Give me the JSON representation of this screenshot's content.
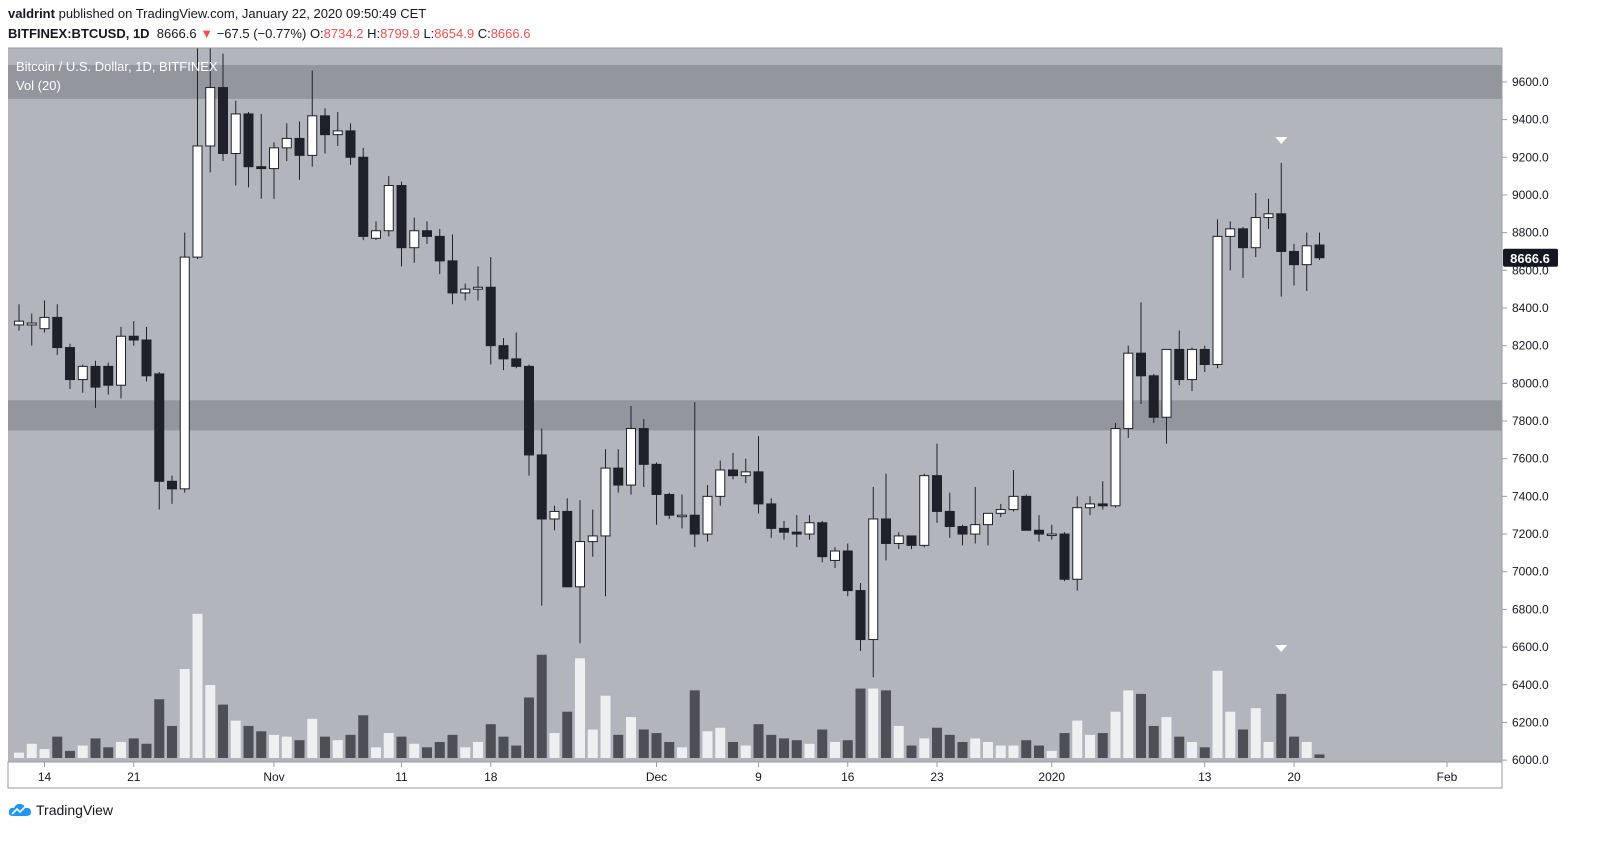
{
  "header": {
    "author": "valdrint",
    "published_text": "published on TradingView.com, January 22, 2020 09:50:49 CET",
    "symbol": "BITFINEX:BTCUSD, 1D",
    "last": "8666.6",
    "change_arrow": "▼",
    "change": "−67.5 (−0.77%)",
    "o_label": "O:",
    "o_value": "8734.2",
    "h_label": "H:",
    "h_value": "8799.9",
    "l_label": "L:",
    "l_value": "8654.9",
    "c_label": "C:",
    "c_value": "8666.6"
  },
  "legend": {
    "title": "Bitcoin / U.S. Dollar, 1D, BITFINEX",
    "vol": "Vol (20)"
  },
  "footer": {
    "brand": "TradingView"
  },
  "colors": {
    "plot_bg": "#b3b5bd",
    "zone": "#94969d",
    "down_candle": "#1e2129",
    "up_candle": "#ffffff",
    "down_volume": "#4d4f55",
    "up_volume": "#eeeff1",
    "price_label_bg": "#131722",
    "neg": "#ef5350"
  },
  "chart_data": {
    "type": "candlestick",
    "title": "Bitcoin / U.S. Dollar, 1D, BITFINEX",
    "ylim": [
      5990,
      9780
    ],
    "y_ticks": [
      "9600.0",
      "9400.0",
      "9200.0",
      "9000.0",
      "8800.0",
      "8600.0",
      "8400.0",
      "8200.0",
      "8000.0",
      "7800.0",
      "7600.0",
      "7400.0",
      "7200.0",
      "7000.0",
      "6800.0",
      "6600.0",
      "6400.0",
      "6200.0",
      "6000.0"
    ],
    "x_ticks": [
      {
        "label": "14",
        "date": "2019-10-14"
      },
      {
        "label": "21",
        "date": "2019-10-21"
      },
      {
        "label": "Nov",
        "date": "2019-11-01"
      },
      {
        "label": "11",
        "date": "2019-11-11"
      },
      {
        "label": "18",
        "date": "2019-11-18"
      },
      {
        "label": "Dec",
        "date": "2019-12-01"
      },
      {
        "label": "9",
        "date": "2019-12-09"
      },
      {
        "label": "16",
        "date": "2019-12-16"
      },
      {
        "label": "23",
        "date": "2019-12-23"
      },
      {
        "label": "2020",
        "date": "2020-01-01"
      },
      {
        "label": "13",
        "date": "2020-01-13"
      },
      {
        "label": "20",
        "date": "2020-01-20"
      },
      {
        "label": "Feb",
        "date": "2020-02-01"
      }
    ],
    "current_price_label": "8666.6",
    "resistance_zone": [
      9510,
      9690
    ],
    "support_zone": [
      7750,
      7910
    ],
    "markers": [
      {
        "date": "2020-01-19",
        "pane": "price",
        "shape": "triangle-down"
      },
      {
        "date": "2020-01-19",
        "pane": "volume",
        "shape": "triangle-down"
      }
    ],
    "candles": [
      {
        "date": "2019-10-12",
        "o": 8310,
        "h": 8420,
        "l": 8280,
        "c": 8330,
        "v": 0.03
      },
      {
        "date": "2019-10-13",
        "o": 8310,
        "h": 8370,
        "l": 8200,
        "c": 8320,
        "v": 0.08
      },
      {
        "date": "2019-10-14",
        "o": 8290,
        "h": 8440,
        "l": 8270,
        "c": 8350,
        "v": 0.05
      },
      {
        "date": "2019-10-15",
        "o": 8350,
        "h": 8420,
        "l": 8150,
        "c": 8190,
        "v": 0.12
      },
      {
        "date": "2019-10-16",
        "o": 8190,
        "h": 8210,
        "l": 7970,
        "c": 8020,
        "v": 0.04
      },
      {
        "date": "2019-10-17",
        "o": 8020,
        "h": 8100,
        "l": 7950,
        "c": 8090,
        "v": 0.07
      },
      {
        "date": "2019-10-18",
        "o": 8090,
        "h": 8120,
        "l": 7870,
        "c": 7980,
        "v": 0.11
      },
      {
        "date": "2019-10-19",
        "o": 8090,
        "h": 8110,
        "l": 7940,
        "c": 7990,
        "v": 0.06
      },
      {
        "date": "2019-10-20",
        "o": 7990,
        "h": 8300,
        "l": 7920,
        "c": 8250,
        "v": 0.09
      },
      {
        "date": "2019-10-21",
        "o": 8250,
        "h": 8330,
        "l": 8200,
        "c": 8230,
        "v": 0.11
      },
      {
        "date": "2019-10-22",
        "o": 8230,
        "h": 8300,
        "l": 8010,
        "c": 8040,
        "v": 0.08
      },
      {
        "date": "2019-10-23",
        "o": 8050,
        "h": 8060,
        "l": 7330,
        "c": 7480,
        "v": 0.33
      },
      {
        "date": "2019-10-24",
        "o": 7480,
        "h": 7510,
        "l": 7360,
        "c": 7440,
        "v": 0.18
      },
      {
        "date": "2019-10-25",
        "o": 7440,
        "h": 8800,
        "l": 7420,
        "c": 8670,
        "v": 0.5
      },
      {
        "date": "2019-10-26",
        "o": 8670,
        "h": 9900,
        "l": 8660,
        "c": 9260,
        "v": 0.81
      },
      {
        "date": "2019-10-27",
        "o": 9260,
        "h": 9900,
        "l": 9120,
        "c": 9570,
        "v": 0.41
      },
      {
        "date": "2019-10-28",
        "o": 9570,
        "h": 9750,
        "l": 9180,
        "c": 9220,
        "v": 0.3
      },
      {
        "date": "2019-10-29",
        "o": 9220,
        "h": 9500,
        "l": 9050,
        "c": 9430,
        "v": 0.21
      },
      {
        "date": "2019-10-30",
        "o": 9430,
        "h": 9440,
        "l": 9040,
        "c": 9150,
        "v": 0.18
      },
      {
        "date": "2019-10-31",
        "o": 9150,
        "h": 9430,
        "l": 8980,
        "c": 9140,
        "v": 0.15
      },
      {
        "date": "2019-11-01",
        "o": 9140,
        "h": 9280,
        "l": 8980,
        "c": 9250,
        "v": 0.13
      },
      {
        "date": "2019-11-02",
        "o": 9250,
        "h": 9380,
        "l": 9180,
        "c": 9300,
        "v": 0.12
      },
      {
        "date": "2019-11-03",
        "o": 9300,
        "h": 9390,
        "l": 9080,
        "c": 9210,
        "v": 0.1
      },
      {
        "date": "2019-11-04",
        "o": 9210,
        "h": 9660,
        "l": 9150,
        "c": 9420,
        "v": 0.22
      },
      {
        "date": "2019-11-05",
        "o": 9420,
        "h": 9460,
        "l": 9220,
        "c": 9320,
        "v": 0.12
      },
      {
        "date": "2019-11-06",
        "o": 9320,
        "h": 9440,
        "l": 9260,
        "c": 9340,
        "v": 0.1
      },
      {
        "date": "2019-11-07",
        "o": 9340,
        "h": 9380,
        "l": 9160,
        "c": 9200,
        "v": 0.13
      },
      {
        "date": "2019-11-08",
        "o": 9200,
        "h": 9250,
        "l": 8760,
        "c": 8780,
        "v": 0.24
      },
      {
        "date": "2019-11-09",
        "o": 8770,
        "h": 8860,
        "l": 8760,
        "c": 8810,
        "v": 0.06
      },
      {
        "date": "2019-11-10",
        "o": 8810,
        "h": 9100,
        "l": 8780,
        "c": 9050,
        "v": 0.14
      },
      {
        "date": "2019-11-11",
        "o": 9050,
        "h": 9070,
        "l": 8620,
        "c": 8720,
        "v": 0.12
      },
      {
        "date": "2019-11-12",
        "o": 8720,
        "h": 8880,
        "l": 8640,
        "c": 8810,
        "v": 0.08
      },
      {
        "date": "2019-11-13",
        "o": 8810,
        "h": 8860,
        "l": 8740,
        "c": 8780,
        "v": 0.06
      },
      {
        "date": "2019-11-14",
        "o": 8780,
        "h": 8820,
        "l": 8580,
        "c": 8650,
        "v": 0.09
      },
      {
        "date": "2019-11-15",
        "o": 8650,
        "h": 8790,
        "l": 8420,
        "c": 8480,
        "v": 0.13
      },
      {
        "date": "2019-11-16",
        "o": 8480,
        "h": 8530,
        "l": 8440,
        "c": 8500,
        "v": 0.06
      },
      {
        "date": "2019-11-17",
        "o": 8500,
        "h": 8620,
        "l": 8440,
        "c": 8510,
        "v": 0.09
      },
      {
        "date": "2019-11-18",
        "o": 8510,
        "h": 8670,
        "l": 8100,
        "c": 8200,
        "v": 0.19
      },
      {
        "date": "2019-11-19",
        "o": 8200,
        "h": 8240,
        "l": 8070,
        "c": 8130,
        "v": 0.12
      },
      {
        "date": "2019-11-20",
        "o": 8130,
        "h": 8270,
        "l": 8080,
        "c": 8090,
        "v": 0.07
      },
      {
        "date": "2019-11-21",
        "o": 8090,
        "h": 8100,
        "l": 7510,
        "c": 7620,
        "v": 0.34
      },
      {
        "date": "2019-11-22",
        "o": 7620,
        "h": 7760,
        "l": 6820,
        "c": 7280,
        "v": 0.58
      },
      {
        "date": "2019-11-23",
        "o": 7280,
        "h": 7350,
        "l": 7220,
        "c": 7320,
        "v": 0.14
      },
      {
        "date": "2019-11-24",
        "o": 7320,
        "h": 7390,
        "l": 6950,
        "c": 6920,
        "v": 0.26
      },
      {
        "date": "2019-11-25",
        "o": 6920,
        "h": 7380,
        "l": 6620,
        "c": 7160,
        "v": 0.56
      },
      {
        "date": "2019-11-26",
        "o": 7160,
        "h": 7330,
        "l": 7080,
        "c": 7190,
        "v": 0.16
      },
      {
        "date": "2019-11-27",
        "o": 7190,
        "h": 7650,
        "l": 6870,
        "c": 7550,
        "v": 0.35
      },
      {
        "date": "2019-11-28",
        "o": 7550,
        "h": 7650,
        "l": 7420,
        "c": 7460,
        "v": 0.13
      },
      {
        "date": "2019-11-29",
        "o": 7460,
        "h": 7880,
        "l": 7410,
        "c": 7760,
        "v": 0.23
      },
      {
        "date": "2019-11-30",
        "o": 7760,
        "h": 7810,
        "l": 7450,
        "c": 7570,
        "v": 0.16
      },
      {
        "date": "2019-12-01",
        "o": 7570,
        "h": 7580,
        "l": 7250,
        "c": 7410,
        "v": 0.14
      },
      {
        "date": "2019-12-02",
        "o": 7410,
        "h": 7420,
        "l": 7280,
        "c": 7300,
        "v": 0.09
      },
      {
        "date": "2019-12-03",
        "o": 7300,
        "h": 7410,
        "l": 7230,
        "c": 7300,
        "v": 0.06
      },
      {
        "date": "2019-12-04",
        "o": 7300,
        "h": 7900,
        "l": 7130,
        "c": 7200,
        "v": 0.38
      },
      {
        "date": "2019-12-05",
        "o": 7200,
        "h": 7460,
        "l": 7160,
        "c": 7400,
        "v": 0.15
      },
      {
        "date": "2019-12-06",
        "o": 7400,
        "h": 7590,
        "l": 7350,
        "c": 7540,
        "v": 0.17
      },
      {
        "date": "2019-12-07",
        "o": 7540,
        "h": 7630,
        "l": 7490,
        "c": 7510,
        "v": 0.09
      },
      {
        "date": "2019-12-08",
        "o": 7510,
        "h": 7600,
        "l": 7470,
        "c": 7530,
        "v": 0.07
      },
      {
        "date": "2019-12-09",
        "o": 7530,
        "h": 7720,
        "l": 7310,
        "c": 7360,
        "v": 0.19
      },
      {
        "date": "2019-12-10",
        "o": 7360,
        "h": 7390,
        "l": 7180,
        "c": 7230,
        "v": 0.13
      },
      {
        "date": "2019-12-11",
        "o": 7230,
        "h": 7270,
        "l": 7170,
        "c": 7210,
        "v": 0.11
      },
      {
        "date": "2019-12-12",
        "o": 7210,
        "h": 7300,
        "l": 7130,
        "c": 7200,
        "v": 0.1
      },
      {
        "date": "2019-12-13",
        "o": 7200,
        "h": 7300,
        "l": 7170,
        "c": 7260,
        "v": 0.08
      },
      {
        "date": "2019-12-14",
        "o": 7260,
        "h": 7270,
        "l": 7050,
        "c": 7080,
        "v": 0.16
      },
      {
        "date": "2019-12-15",
        "o": 7060,
        "h": 7130,
        "l": 7020,
        "c": 7110,
        "v": 0.09
      },
      {
        "date": "2019-12-16",
        "o": 7110,
        "h": 7150,
        "l": 6870,
        "c": 6900,
        "v": 0.1
      },
      {
        "date": "2019-12-17",
        "o": 6900,
        "h": 6940,
        "l": 6580,
        "c": 6640,
        "v": 0.39
      },
      {
        "date": "2019-12-18",
        "o": 6640,
        "h": 7450,
        "l": 6440,
        "c": 7280,
        "v": 0.39
      },
      {
        "date": "2019-12-19",
        "o": 7280,
        "h": 7520,
        "l": 7060,
        "c": 7150,
        "v": 0.38
      },
      {
        "date": "2019-12-20",
        "o": 7150,
        "h": 7210,
        "l": 7120,
        "c": 7190,
        "v": 0.18
      },
      {
        "date": "2019-12-21",
        "o": 7190,
        "h": 7190,
        "l": 7120,
        "c": 7140,
        "v": 0.07
      },
      {
        "date": "2019-12-22",
        "o": 7140,
        "h": 7520,
        "l": 7130,
        "c": 7510,
        "v": 0.11
      },
      {
        "date": "2019-12-23",
        "o": 7510,
        "h": 7680,
        "l": 7260,
        "c": 7320,
        "v": 0.17
      },
      {
        "date": "2019-12-24",
        "o": 7320,
        "h": 7420,
        "l": 7180,
        "c": 7240,
        "v": 0.13
      },
      {
        "date": "2019-12-25",
        "o": 7240,
        "h": 7250,
        "l": 7140,
        "c": 7200,
        "v": 0.09
      },
      {
        "date": "2019-12-26",
        "o": 7200,
        "h": 7450,
        "l": 7150,
        "c": 7250,
        "v": 0.11
      },
      {
        "date": "2019-12-27",
        "o": 7250,
        "h": 7300,
        "l": 7140,
        "c": 7310,
        "v": 0.09
      },
      {
        "date": "2019-12-28",
        "o": 7310,
        "h": 7360,
        "l": 7290,
        "c": 7330,
        "v": 0.07
      },
      {
        "date": "2019-12-29",
        "o": 7330,
        "h": 7540,
        "l": 7320,
        "c": 7400,
        "v": 0.07
      },
      {
        "date": "2019-12-30",
        "o": 7400,
        "h": 7410,
        "l": 7230,
        "c": 7220,
        "v": 0.1
      },
      {
        "date": "2019-12-31",
        "o": 7220,
        "h": 7300,
        "l": 7160,
        "c": 7200,
        "v": 0.07
      },
      {
        "date": "2020-01-01",
        "o": 7200,
        "h": 7250,
        "l": 7170,
        "c": 7200,
        "v": 0.04
      },
      {
        "date": "2020-01-02",
        "o": 7200,
        "h": 7210,
        "l": 6950,
        "c": 6960,
        "v": 0.14
      },
      {
        "date": "2020-01-03",
        "o": 6960,
        "h": 7400,
        "l": 6900,
        "c": 7340,
        "v": 0.21
      },
      {
        "date": "2020-01-04",
        "o": 7340,
        "h": 7400,
        "l": 7300,
        "c": 7360,
        "v": 0.13
      },
      {
        "date": "2020-01-05",
        "o": 7360,
        "h": 7480,
        "l": 7330,
        "c": 7350,
        "v": 0.14
      },
      {
        "date": "2020-01-06",
        "o": 7350,
        "h": 7790,
        "l": 7340,
        "c": 7760,
        "v": 0.26
      },
      {
        "date": "2020-01-07",
        "o": 7760,
        "h": 8200,
        "l": 7710,
        "c": 8160,
        "v": 0.38
      },
      {
        "date": "2020-01-08",
        "o": 8160,
        "h": 8430,
        "l": 7890,
        "c": 8040,
        "v": 0.36
      },
      {
        "date": "2020-01-09",
        "o": 8040,
        "h": 8050,
        "l": 7790,
        "c": 7820,
        "v": 0.18
      },
      {
        "date": "2020-01-10",
        "o": 7820,
        "h": 8180,
        "l": 7680,
        "c": 8180,
        "v": 0.23
      },
      {
        "date": "2020-01-11",
        "o": 8180,
        "h": 8280,
        "l": 7990,
        "c": 8020,
        "v": 0.12
      },
      {
        "date": "2020-01-12",
        "o": 8020,
        "h": 8190,
        "l": 7960,
        "c": 8180,
        "v": 0.09
      },
      {
        "date": "2020-01-13",
        "o": 8180,
        "h": 8200,
        "l": 8060,
        "c": 8100,
        "v": 0.06
      },
      {
        "date": "2020-01-14",
        "o": 8100,
        "h": 8870,
        "l": 8080,
        "c": 8780,
        "v": 0.49
      },
      {
        "date": "2020-01-15",
        "o": 8780,
        "h": 8860,
        "l": 8600,
        "c": 8820,
        "v": 0.26
      },
      {
        "date": "2020-01-16",
        "o": 8820,
        "h": 8830,
        "l": 8560,
        "c": 8720,
        "v": 0.16
      },
      {
        "date": "2020-01-17",
        "o": 8720,
        "h": 9010,
        "l": 8670,
        "c": 8880,
        "v": 0.28
      },
      {
        "date": "2020-01-18",
        "o": 8880,
        "h": 8980,
        "l": 8820,
        "c": 8900,
        "v": 0.09
      },
      {
        "date": "2020-01-19",
        "o": 8900,
        "h": 9170,
        "l": 8460,
        "c": 8700,
        "v": 0.36
      },
      {
        "date": "2020-01-20",
        "o": 8700,
        "h": 8740,
        "l": 8520,
        "c": 8630,
        "v": 0.12
      },
      {
        "date": "2020-01-21",
        "o": 8630,
        "h": 8800,
        "l": 8490,
        "c": 8730,
        "v": 0.09
      },
      {
        "date": "2020-01-22",
        "o": 8734.2,
        "h": 8799.9,
        "l": 8654.9,
        "c": 8666.6,
        "v": 0.02
      }
    ]
  }
}
